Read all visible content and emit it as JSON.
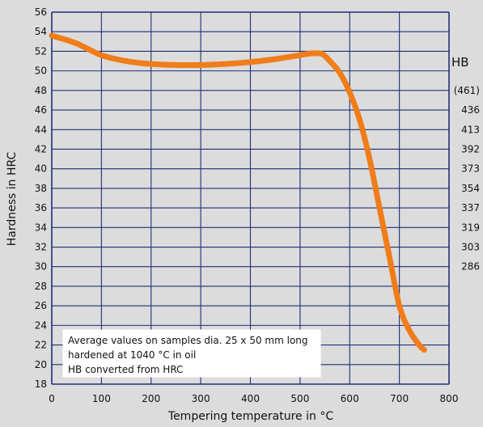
{
  "chart_data": {
    "type": "line",
    "title": "",
    "xlabel": "Tempering temperature in °C",
    "ylabel": "Hardness in HRC",
    "xlim": [
      0,
      800
    ],
    "ylim": [
      18,
      56
    ],
    "x_ticks": [
      0,
      100,
      200,
      300,
      400,
      500,
      600,
      700,
      800
    ],
    "y_ticks": [
      18,
      20,
      22,
      24,
      26,
      28,
      30,
      32,
      34,
      36,
      38,
      40,
      42,
      44,
      46,
      48,
      50,
      52,
      54,
      56
    ],
    "grid": true,
    "series": [
      {
        "color": "#f07d1a",
        "x": [
          0,
          50,
          100,
          150,
          200,
          250,
          300,
          350,
          400,
          450,
          500,
          525,
          545,
          560,
          580,
          600,
          620,
          640,
          660,
          680,
          700,
          720,
          740,
          750
        ],
        "y": [
          53.6,
          52.8,
          51.6,
          51.0,
          50.7,
          50.6,
          50.6,
          50.7,
          50.9,
          51.2,
          51.6,
          51.8,
          51.7,
          51.0,
          49.8,
          47.8,
          45.0,
          41.0,
          36.0,
          31.0,
          26.0,
          23.5,
          22.0,
          21.5
        ]
      }
    ],
    "secondary_axis": {
      "label": "HB",
      "entries": [
        {
          "hrc": 48,
          "label": "(461)"
        },
        {
          "hrc": 46,
          "label": "436"
        },
        {
          "hrc": 44,
          "label": "413"
        },
        {
          "hrc": 42,
          "label": "392"
        },
        {
          "hrc": 40,
          "label": "373"
        },
        {
          "hrc": 38,
          "label": "354"
        },
        {
          "hrc": 36,
          "label": "337"
        },
        {
          "hrc": 34,
          "label": "319"
        },
        {
          "hrc": 32,
          "label": "303"
        },
        {
          "hrc": 30,
          "label": "286"
        }
      ]
    },
    "annotation": [
      "Average values on samples dia. 25 x 50 mm long",
      "hardened at 1040 °C in oil",
      "HB converted from HRC"
    ]
  },
  "colors": {
    "background": "#dcdcdc",
    "grid": "#1f2f78",
    "curve": "#f07d1a"
  }
}
